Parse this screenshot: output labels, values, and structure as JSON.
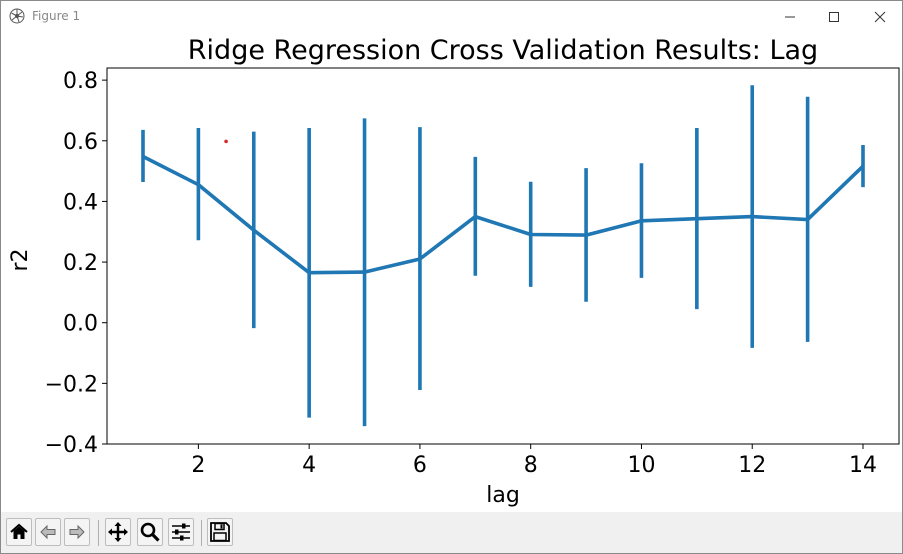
{
  "window": {
    "title": "Figure 1"
  },
  "colors": {
    "series": "#1f77b4",
    "annotation": "#d62728"
  },
  "toolbar": {
    "buttons": [
      {
        "name": "home-button",
        "icon": "home-icon"
      },
      {
        "name": "back-button",
        "icon": "back-arrow-icon"
      },
      {
        "name": "forward-button",
        "icon": "forward-arrow-icon"
      },
      {
        "name": "pan-button",
        "icon": "move-icon"
      },
      {
        "name": "zoom-button",
        "icon": "zoom-icon"
      },
      {
        "name": "configure-subplots-button",
        "icon": "sliders-icon"
      },
      {
        "name": "save-button",
        "icon": "save-icon"
      }
    ]
  },
  "chart_data": {
    "type": "line",
    "title": "Ridge Regression Cross Validation Results: Lag",
    "xlabel": "lag",
    "ylabel": "r2",
    "xlim": [
      0.35,
      14.65
    ],
    "ylim": [
      -0.4,
      0.84
    ],
    "xticks": [
      2,
      4,
      6,
      8,
      10,
      12,
      14
    ],
    "xtick_labels": [
      "2",
      "4",
      "6",
      "8",
      "10",
      "12",
      "14"
    ],
    "yticks": [
      -0.4,
      -0.2,
      0.0,
      0.2,
      0.4,
      0.6,
      0.8
    ],
    "ytick_labels": [
      "−0.4",
      "−0.2",
      "0.0",
      "0.2",
      "0.4",
      "0.6",
      "0.8"
    ],
    "grid": false,
    "series": [
      {
        "x": [
          1,
          2,
          3,
          4,
          5,
          6,
          7,
          8,
          9,
          10,
          11,
          12,
          13,
          14
        ],
        "values": [
          0.548,
          0.455,
          0.305,
          0.165,
          0.167,
          0.21,
          0.35,
          0.291,
          0.289,
          0.336,
          0.343,
          0.35,
          0.34,
          0.516
        ],
        "err_low": [
          0.464,
          0.272,
          -0.018,
          -0.313,
          -0.341,
          -0.222,
          0.155,
          0.118,
          0.069,
          0.148,
          0.045,
          -0.083,
          -0.063,
          0.447
        ],
        "err_high": [
          0.636,
          0.642,
          0.63,
          0.642,
          0.674,
          0.645,
          0.547,
          0.465,
          0.51,
          0.526,
          0.642,
          0.783,
          0.745,
          0.586
        ]
      }
    ],
    "annotation_point": {
      "x": 2.5,
      "y": 0.598
    }
  }
}
